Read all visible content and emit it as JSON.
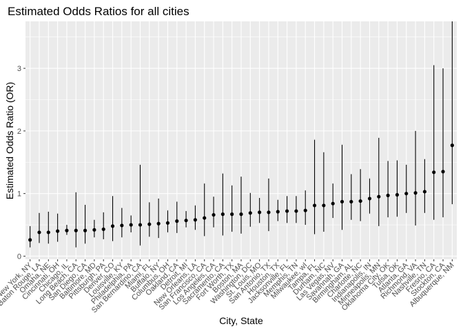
{
  "chart_data": {
    "type": "scatter",
    "style": "point-with-errorbars",
    "title": "Estimated Odds Ratios for all cities",
    "xlabel": "City, State",
    "ylabel": "Estimated Odds Ratio (OR)",
    "ylim": [
      -0.05,
      3.75
    ],
    "yticks": [
      0,
      1,
      2,
      3
    ],
    "grid": true,
    "legend": "none",
    "colors": {
      "panel": "#EBEBEB",
      "grid": "#FFFFFF",
      "point": "#000000",
      "tick_text": "#4D4D4D"
    },
    "categories": [
      "New York, NY",
      "Baton Rouge, LA",
      "Omaha, NE",
      "Cincinnati, OH",
      "Chicago, IL",
      "Long Beach, CA",
      "San Diego, CA",
      "Baltimore, MD",
      "Pittsburgh, PA",
      "Denver, CO",
      "Louisville, KY",
      "Philadelphia, PA",
      "San Bernardino, CA",
      "Miami, FL",
      "Buffalo, NY",
      "Columbus, OH",
      "Oakland, CA",
      "Detroit, MI",
      "New Orleans, LA",
      "San Francisco, CA",
      "Los Angeles, CA",
      "Sacramento, CA",
      "Fort Worth, TX",
      "Boston, MA",
      "Washington, DC",
      "St. Louis, MO",
      "San Antonio, TX",
      "Houston, TX",
      "Jacksonville, FL",
      "Memphis, TN",
      "Milwaukee, wI",
      "Tampa, FL",
      "Durham, NC",
      "Las Vegas, NV",
      "Savannah, GA",
      "Birmingham, AL",
      "Charlotte, NC",
      "Indianapolis, IN",
      "Minneapolis, MN",
      "Oklahoma City, OK",
      "Tulsa, OK",
      "Atlanta, GA",
      "Richmond, VA",
      "Nashville, TN",
      "Fresno, CA",
      "Stockton, CA",
      "Albuquerque, NM"
    ],
    "series": [
      {
        "or": [
          0.26,
          0.38,
          0.38,
          0.4,
          0.41,
          0.41,
          0.41,
          0.42,
          0.43,
          0.48,
          0.49,
          0.5,
          0.5,
          0.51,
          0.52,
          0.53,
          0.56,
          0.57,
          0.58,
          0.61,
          0.66,
          0.67,
          0.67,
          0.67,
          0.69,
          0.7,
          0.7,
          0.71,
          0.72,
          0.72,
          0.73,
          0.81,
          0.81,
          0.84,
          0.87,
          0.87,
          0.88,
          0.92,
          0.95,
          0.97,
          0.98,
          1.0,
          1.01,
          1.03,
          1.34,
          1.35,
          1.77
        ],
        "lower": [
          0.14,
          0.21,
          0.2,
          0.23,
          0.34,
          0.14,
          0.2,
          0.3,
          0.27,
          0.24,
          0.3,
          0.38,
          0.17,
          0.31,
          0.29,
          0.38,
          0.37,
          0.46,
          0.42,
          0.32,
          0.46,
          0.33,
          0.39,
          0.36,
          0.47,
          0.53,
          0.4,
          0.56,
          0.53,
          0.53,
          0.5,
          0.35,
          0.39,
          0.61,
          0.42,
          0.58,
          0.56,
          0.68,
          0.48,
          0.62,
          0.63,
          0.69,
          0.49,
          0.69,
          0.58,
          0.62,
          0.83
        ],
        "upper": [
          0.48,
          0.69,
          0.71,
          0.68,
          0.5,
          1.02,
          0.82,
          0.58,
          0.7,
          0.96,
          0.77,
          0.65,
          1.46,
          0.86,
          0.92,
          0.73,
          0.87,
          0.72,
          0.81,
          1.16,
          0.95,
          1.32,
          1.13,
          1.27,
          1.01,
          0.93,
          1.24,
          0.9,
          0.96,
          0.96,
          1.05,
          1.86,
          1.66,
          1.16,
          1.78,
          1.31,
          1.39,
          1.24,
          1.89,
          1.52,
          1.53,
          1.46,
          2.0,
          1.55,
          3.05,
          3.0,
          3.75
        ]
      }
    ]
  }
}
